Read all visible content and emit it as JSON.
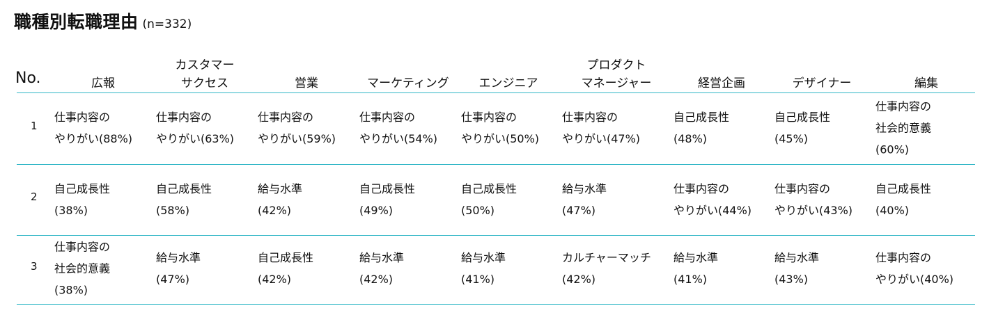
{
  "title": {
    "main": "職種別転職理由",
    "sample": "(n=332)"
  },
  "table": {
    "no_header": "No.",
    "columns": [
      "広報",
      "カスタマー\nサクセス",
      "営業",
      "マーケティング",
      "エンジニア",
      "プロダクト\nマネージャー",
      "経営企画",
      "デザイナー",
      "編集"
    ],
    "rows": [
      {
        "no": "1",
        "cells": [
          "仕事内容の\nやりがい(88%)",
          "仕事内容の\nやりがい(63%)",
          "仕事内容の\nやりがい(59%)",
          "仕事内容の\nやりがい(54%)",
          "仕事内容の\nやりがい(50%)",
          "仕事内容の\nやりがい(47%)",
          "自己成長性\n(48%)",
          "自己成長性\n(45%)",
          "仕事内容の\n社会的意義\n(60%)"
        ]
      },
      {
        "no": "2",
        "cells": [
          "自己成長性\n(38%)",
          "自己成長性\n(58%)",
          "給与水準\n(42%)",
          "自己成長性\n(49%)",
          "自己成長性\n(50%)",
          "給与水準\n(47%)",
          "仕事内容の\nやりがい(44%)",
          "仕事内容の\nやりがい(43%)",
          "自己成長性\n(40%)"
        ]
      },
      {
        "no": "3",
        "cells": [
          "仕事内容の\n社会的意義\n(38%)",
          "給与水準\n(47%)",
          "自己成長性\n(42%)",
          "給与水準\n(42%)",
          "給与水準\n(41%)",
          "カルチャーマッチ\n(42%)",
          "給与水準\n(41%)",
          "給与水準\n(43%)",
          "仕事内容の\nやりがい(40%)"
        ]
      }
    ]
  },
  "colors": {
    "rule": "#2fb6c6",
    "text": "#111111"
  }
}
